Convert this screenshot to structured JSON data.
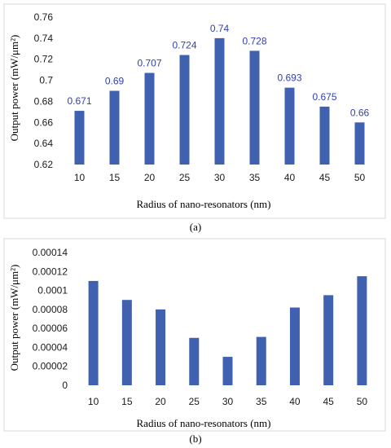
{
  "chart_data": [
    {
      "type": "bar",
      "caption": "(a)",
      "categories": [
        "10",
        "15",
        "20",
        "25",
        "30",
        "35",
        "40",
        "45",
        "50"
      ],
      "values": [
        0.671,
        0.69,
        0.707,
        0.724,
        0.74,
        0.728,
        0.693,
        0.675,
        0.66
      ],
      "data_labels": [
        "0.671",
        "0.69",
        "0.707",
        "0.724",
        "0.74",
        "0.728",
        "0.693",
        "0.675",
        "0.66"
      ],
      "yticks": [
        "0.62",
        "0.64",
        "0.66",
        "0.68",
        "0.7",
        "0.72",
        "0.74",
        "0.76"
      ],
      "ylim": [
        0.62,
        0.76
      ],
      "xlabel": "Radius of nano-resonators (nm)",
      "ylabel": "Output power (mW/μm²)",
      "grid": false,
      "bar_color": "#4060b0",
      "label_color": "#2f3fb3"
    },
    {
      "type": "bar",
      "caption": "(b)",
      "categories": [
        "10",
        "15",
        "20",
        "25",
        "30",
        "35",
        "40",
        "45",
        "50"
      ],
      "values": [
        0.00011,
        9e-05,
        8e-05,
        5e-05,
        3e-05,
        5.1e-05,
        8.2e-05,
        9.5e-05,
        0.000115
      ],
      "yticks": [
        "0",
        "0.00002",
        "0.00004",
        "0.00006",
        "0.00008",
        "0.0001",
        "0.00012",
        "0.00014"
      ],
      "ylim": [
        0,
        0.00014
      ],
      "xlabel": "Radius of nano-resonators (nm)",
      "ylabel": "Output power (mW/μm²)",
      "grid": false,
      "bar_color": "#4060b0"
    }
  ]
}
